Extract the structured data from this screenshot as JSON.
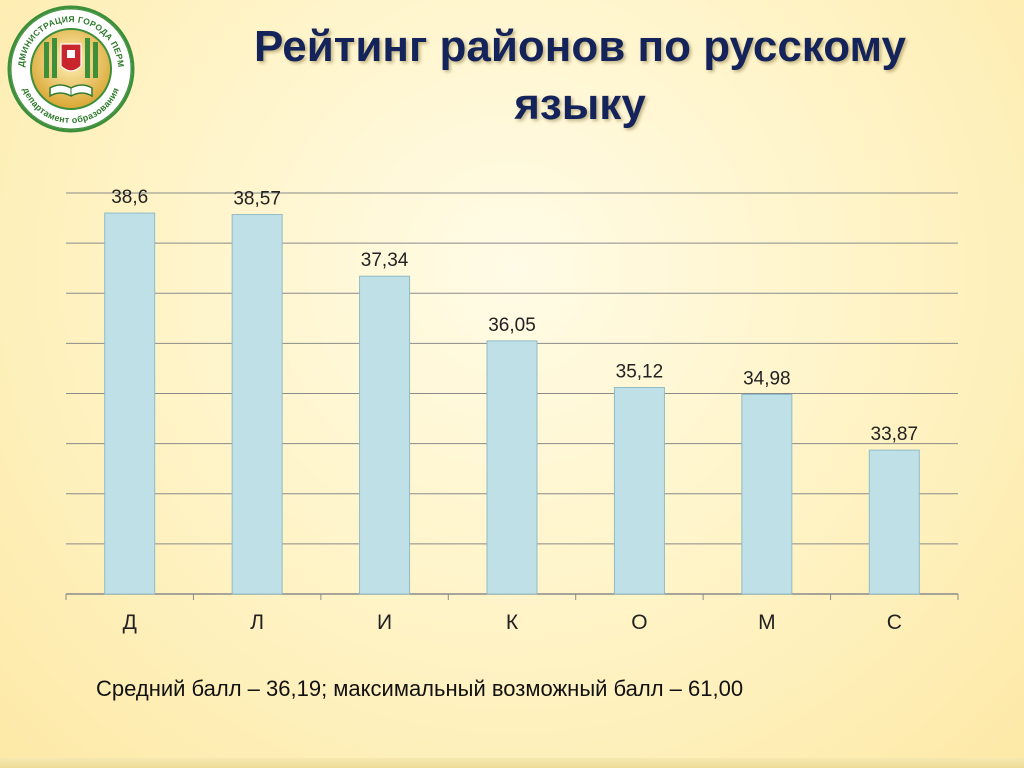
{
  "slide": {
    "title_line1": "Рейтинг районов по русскому",
    "title_line2": "языку",
    "caption": "Средний балл – 36,19; максимальный возможный балл – 61,00"
  },
  "logo": {
    "ring_text_top": "АДМИНИСТРАЦИЯ ГОРОДА ПЕРМИ",
    "ring_text_bottom": "департамент образования",
    "icon": "emblem-book-icon"
  },
  "colors": {
    "bar_fill": "#bfe0e6",
    "bar_stroke": "#8fbcc5",
    "grid": "#8a8a8a",
    "title": "#14245a",
    "logo_green": "#3e8f3a",
    "logo_gold": "#d9a633"
  },
  "chart_data": {
    "type": "bar",
    "title": "",
    "xlabel": "",
    "ylabel": "",
    "categories": [
      "Д",
      "Л",
      "И",
      "К",
      "О",
      "М",
      "С"
    ],
    "values": [
      38.6,
      38.57,
      37.34,
      36.05,
      35.12,
      34.98,
      33.87
    ],
    "value_labels": [
      "38,6",
      "38,57",
      "37,34",
      "36,05",
      "35,12",
      "34,98",
      "33,87"
    ],
    "ylim": [
      31,
      39
    ],
    "grid": true,
    "legend": "none"
  }
}
